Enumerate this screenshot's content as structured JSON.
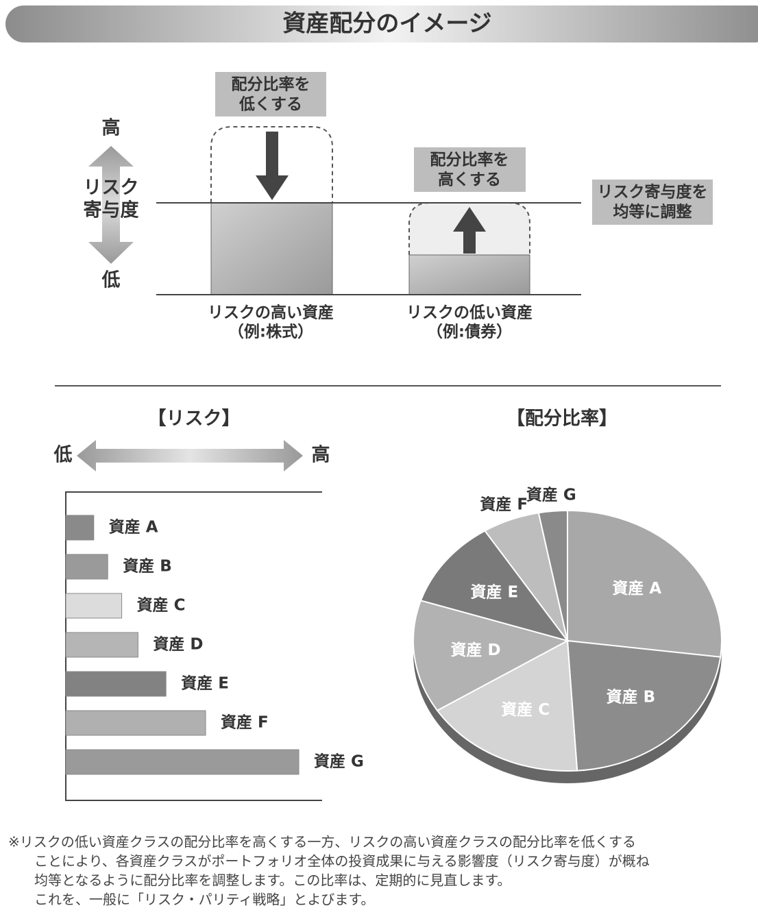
{
  "header": {
    "title": "資産配分のイメージ"
  },
  "diagram": {
    "axis_high": "高",
    "axis_label": [
      "リスク",
      "寄与度"
    ],
    "axis_low": "低",
    "down_label": [
      "配分比率を",
      "低くする"
    ],
    "up_label": [
      "配分比率を",
      "高くする"
    ],
    "equal_label": [
      "リスク寄与度を",
      "均等に調整"
    ],
    "high_asset": [
      "リスクの高い資産",
      "（例:株式）"
    ],
    "low_asset": [
      "リスクの低い資産",
      "（例:債券）"
    ]
  },
  "chart_data": [
    {
      "type": "bar",
      "title": "【リスク】",
      "low": "低",
      "high": "高",
      "categories": [
        "資産 A",
        "資産 B",
        "資産 C",
        "資産 D",
        "資産 E",
        "資産 F",
        "資産 G"
      ],
      "values": [
        12,
        18,
        24,
        31,
        43,
        60,
        100
      ],
      "colors": [
        "#8a8a8a",
        "#9a9a9a",
        "#dcdcdc",
        "#b5b5b5",
        "#828282",
        "#b0b0b0",
        "#9a9a9a"
      ],
      "xlim": [
        0,
        110
      ]
    },
    {
      "type": "pie",
      "title": "【配分比率】",
      "categories": [
        "資産 A",
        "資産 B",
        "資産 C",
        "資産 D",
        "資産 E",
        "資産 F",
        "資産 G"
      ],
      "values": [
        27,
        22,
        17,
        14,
        11,
        6,
        3
      ],
      "colors": [
        "#a8a8a8",
        "#8c8c8c",
        "#d4d4d4",
        "#b2b2b2",
        "#7a7a7a",
        "#bdbdbd",
        "#8a8a8a"
      ]
    }
  ],
  "note": [
    "※リスクの低い資産クラスの配分比率を高くする一方、リスクの高い資産クラスの配分比率を低くする",
    "ことにより、各資産クラスがポートフォリオ全体の投資成果に与える影響度（リスク寄与度）が概ね",
    "均等となるように配分比率を調整します。この比率は、定期的に見直します。",
    "これを、一般に「リスク・パリティ戦略」とよびます。"
  ]
}
